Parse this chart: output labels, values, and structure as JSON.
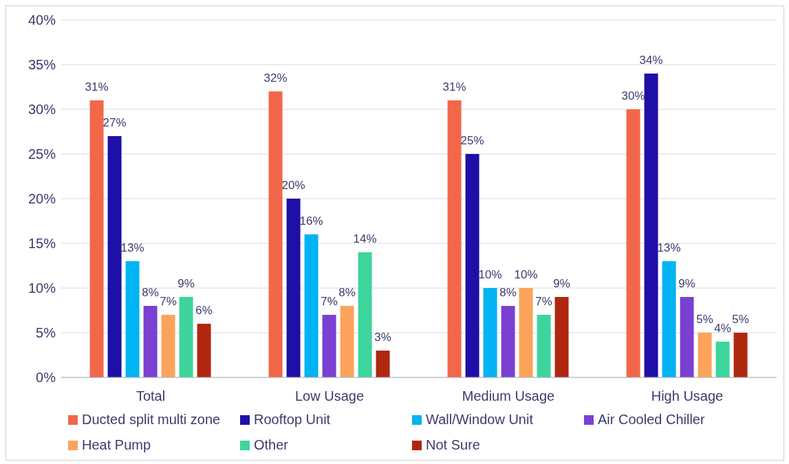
{
  "chart_data": {
    "type": "bar",
    "categories": [
      "Total",
      "Low Usage",
      "Medium Usage",
      "High Usage"
    ],
    "series": [
      {
        "name": "Ducted split multi zone",
        "color": "#f2674a",
        "values": [
          31,
          32,
          31,
          30
        ],
        "value_labels": [
          "31%",
          "32%",
          "31%",
          "30%"
        ]
      },
      {
        "name": "Rooftop Unit",
        "color": "#1e10a6",
        "values": [
          27,
          20,
          25,
          34
        ],
        "value_labels": [
          "27%",
          "20%",
          "25%",
          "34%"
        ]
      },
      {
        "name": "Wall/Window Unit",
        "color": "#00b3f2",
        "values": [
          13,
          16,
          10,
          13
        ],
        "value_labels": [
          "13%",
          "16%",
          "10%",
          "13%"
        ]
      },
      {
        "name": "Air Cooled Chiller",
        "color": "#7a40d2",
        "values": [
          8,
          7,
          8,
          9
        ],
        "value_labels": [
          "8%",
          "7%",
          "8%",
          "9%"
        ]
      },
      {
        "name": "Heat Pump",
        "color": "#fca35b",
        "values": [
          7,
          8,
          10,
          5
        ],
        "value_labels": [
          "7%",
          "8%",
          "10%",
          "5%"
        ]
      },
      {
        "name": "Other",
        "color": "#3dd59b",
        "values": [
          9,
          14,
          7,
          4
        ],
        "value_labels": [
          "9%",
          "14%",
          "7%",
          "4%"
        ]
      },
      {
        "name": "Not Sure",
        "color": "#b0270f",
        "values": [
          6,
          3,
          9,
          5
        ],
        "value_labels": [
          "6%",
          "3%",
          "9%",
          "5%"
        ]
      }
    ],
    "ylim": [
      0,
      40
    ],
    "yticks": [
      {
        "value": 0,
        "label": "0%"
      },
      {
        "value": 5,
        "label": "5%"
      },
      {
        "value": 10,
        "label": "10%"
      },
      {
        "value": 15,
        "label": "15%"
      },
      {
        "value": 20,
        "label": "20%"
      },
      {
        "value": 25,
        "label": "25%"
      },
      {
        "value": 30,
        "label": "30%"
      },
      {
        "value": 35,
        "label": "35%"
      },
      {
        "value": 40,
        "label": "40%"
      }
    ],
    "grid": "y",
    "legend": "bottom"
  }
}
